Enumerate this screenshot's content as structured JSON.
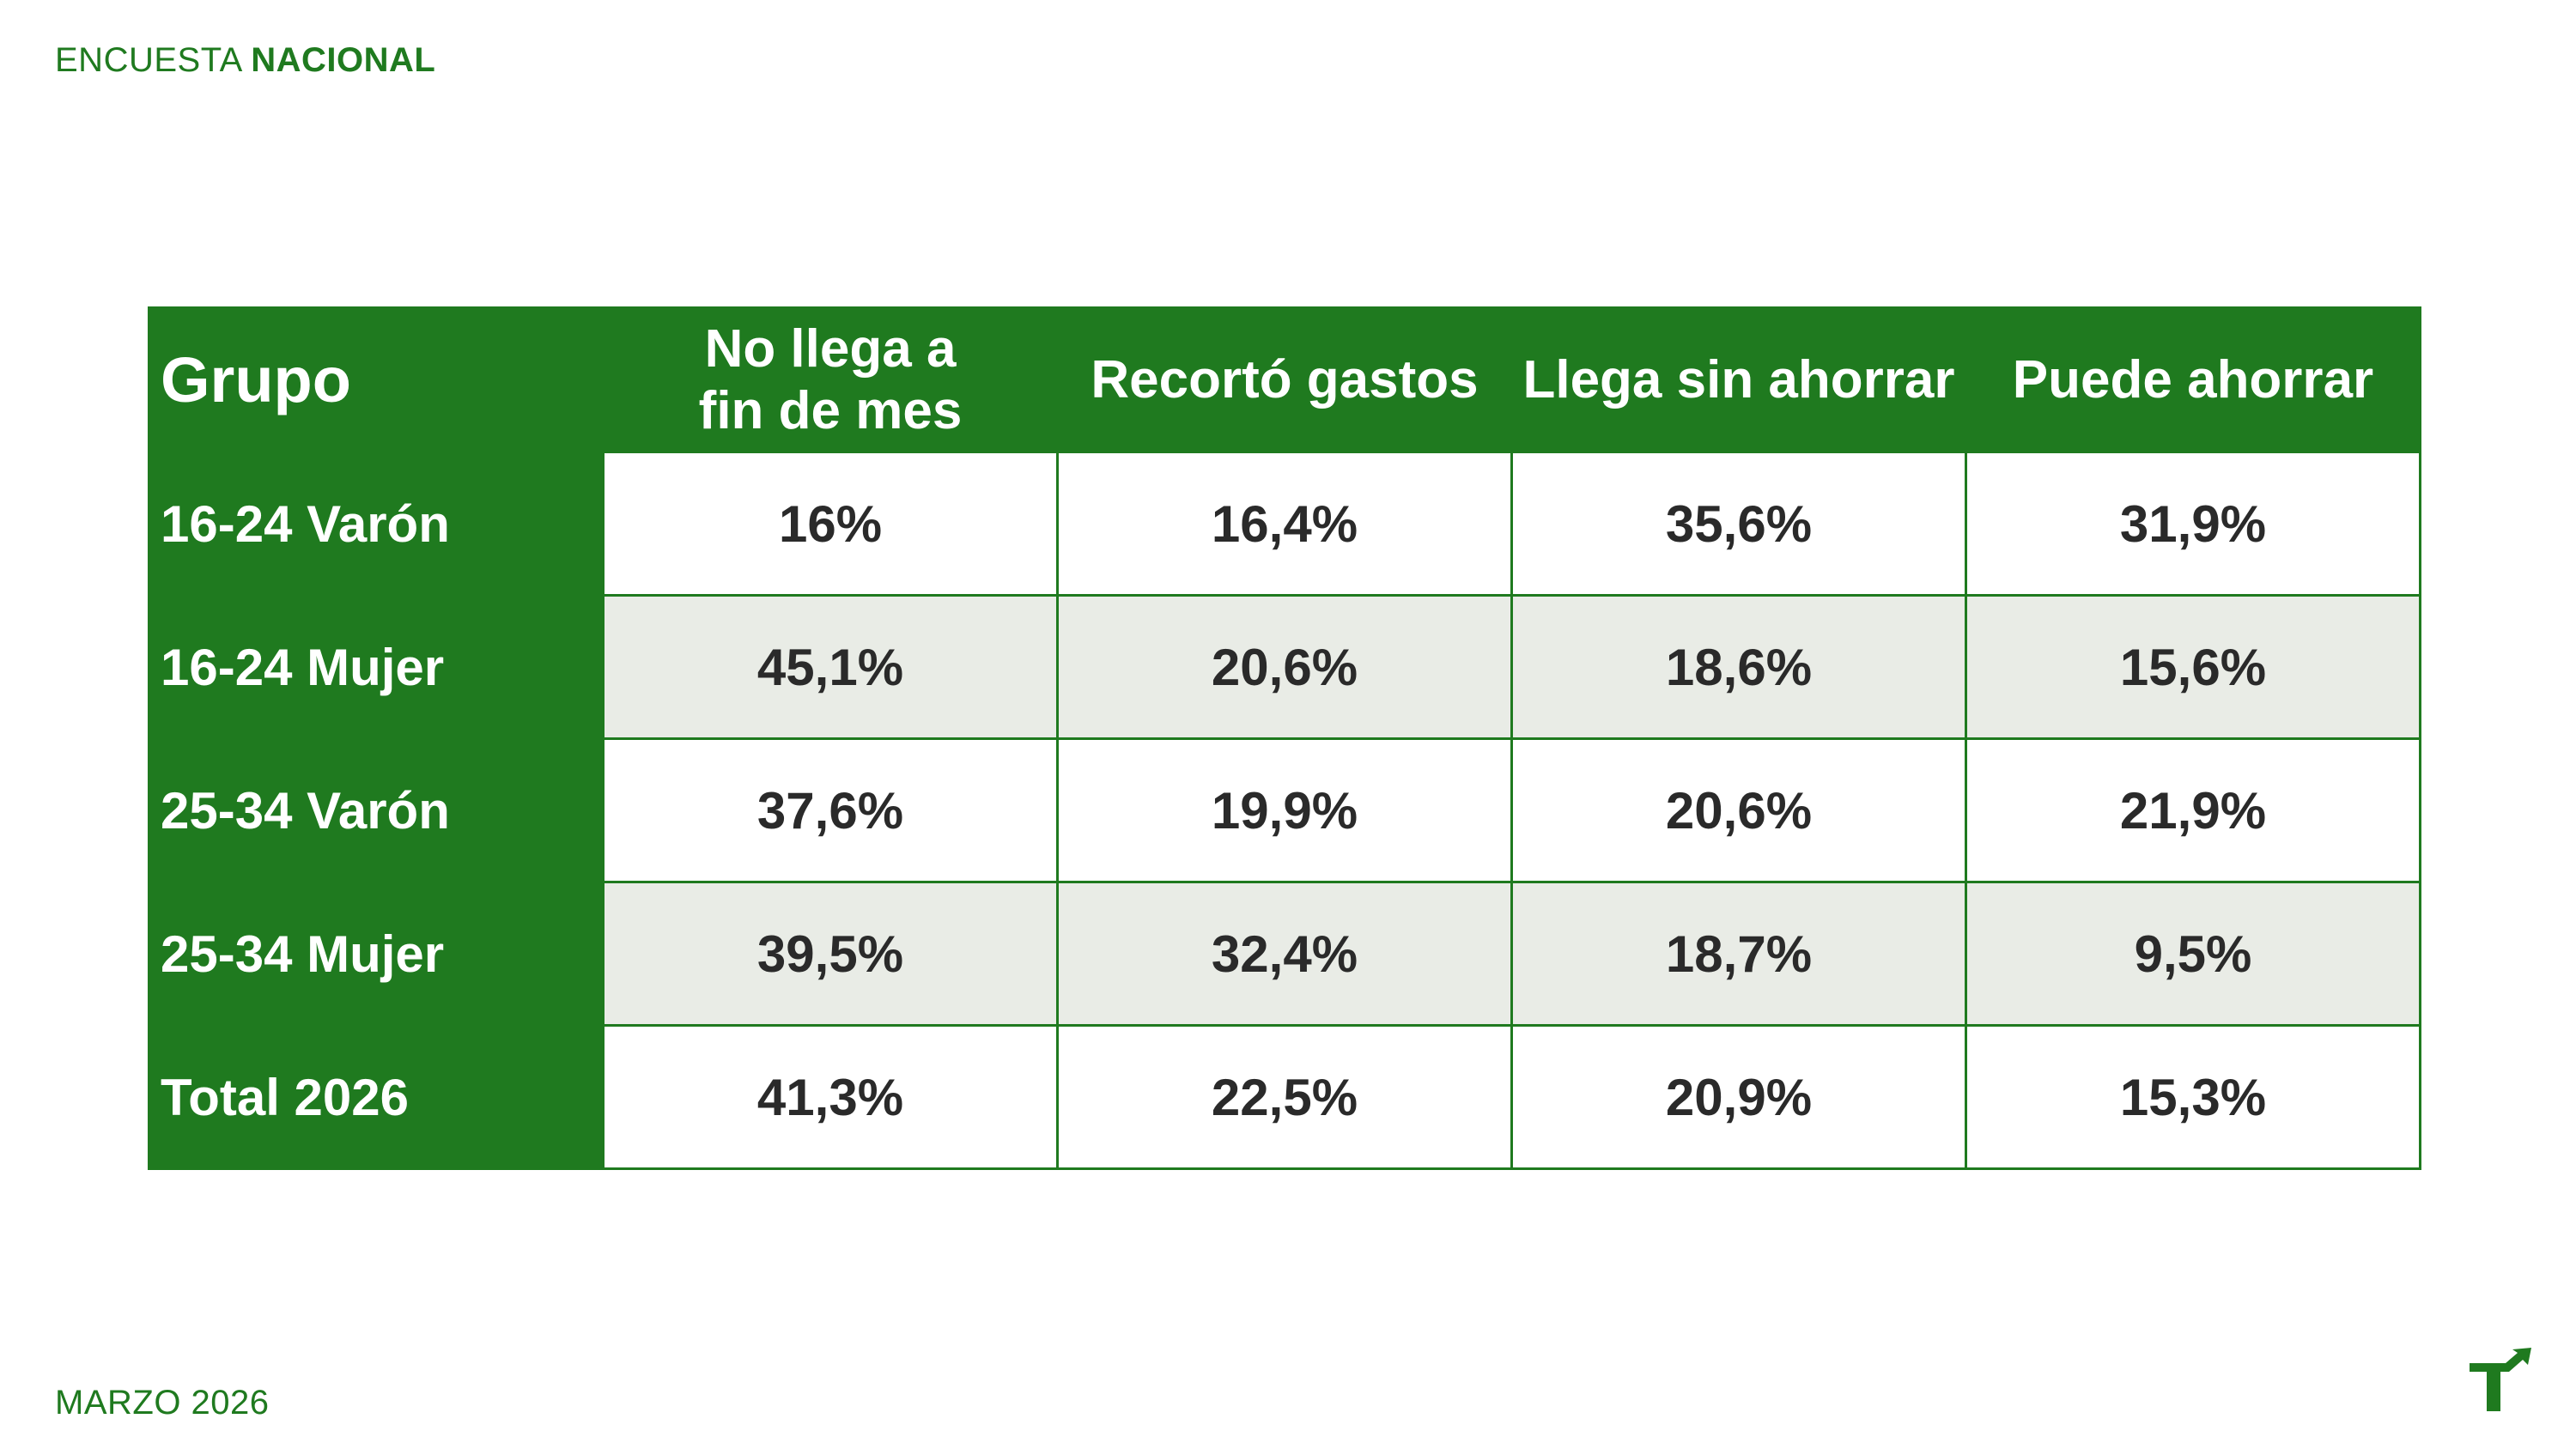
{
  "header": {
    "label_regular": "ENCUESTA",
    "label_bold": "NACIONAL"
  },
  "footer": {
    "date": "MARZO 2026"
  },
  "logo": {
    "icon": "growth-arrow-logo-icon",
    "color": "#1f7a1f"
  },
  "colors": {
    "accent": "#1f7a1f",
    "alt_row": "#e9ece6",
    "text": "#2a2a2a"
  },
  "table": {
    "columns": {
      "group": "Grupo",
      "no_llega_line1": "No llega a",
      "no_llega_line2": "fin de mes",
      "recorto": "Recortó gastos",
      "llega": "Llega sin ahorrar",
      "ahorrar": "Puede ahorrar"
    },
    "rows": [
      {
        "group": "16-24 Varón",
        "values": [
          "16%",
          "16,4%",
          "35,6%",
          "31,9%"
        ]
      },
      {
        "group": "16-24 Mujer",
        "values": [
          "45,1%",
          "20,6%",
          "18,6%",
          "15,6%"
        ]
      },
      {
        "group": "25-34 Varón",
        "values": [
          "37,6%",
          "19,9%",
          "20,6%",
          "21,9%"
        ]
      },
      {
        "group": "25-34 Mujer",
        "values": [
          "39,5%",
          "32,4%",
          "18,7%",
          "9,5%"
        ]
      },
      {
        "group": "Total 2026",
        "values": [
          "41,3%",
          "22,5%",
          "20,9%",
          "15,3%"
        ]
      }
    ]
  }
}
